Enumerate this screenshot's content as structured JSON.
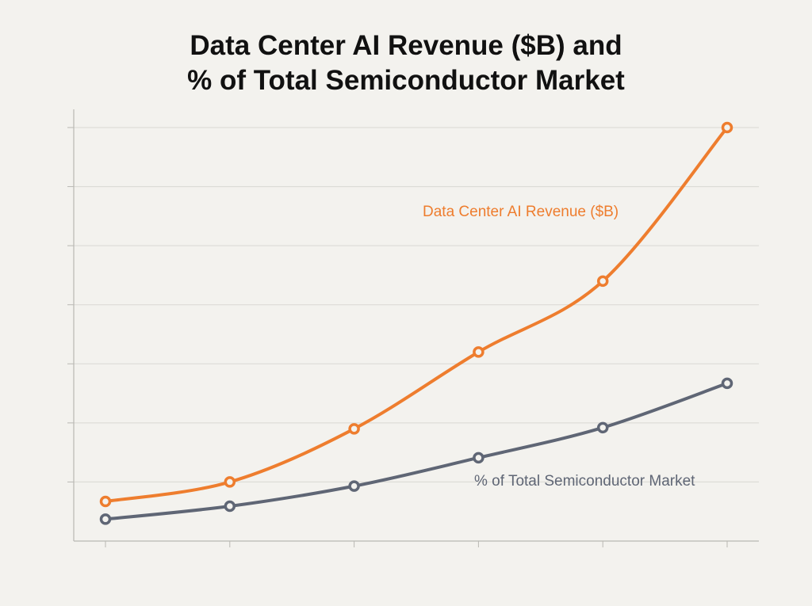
{
  "chart_data": {
    "type": "line",
    "title_lines": [
      "Data Center  AI Revenue ($B)  and",
      "% of Total Semiconductor Market"
    ],
    "xlabel": "",
    "ylabel": "",
    "x": [
      1,
      2,
      3,
      4,
      5,
      6
    ],
    "ylim": [
      0,
      7
    ],
    "yticks": [
      1,
      2,
      3,
      4,
      5,
      6,
      7
    ],
    "grid": true,
    "tick_labels_shown": false,
    "legend": "inline labels",
    "series": [
      {
        "name": "Data Center AI Revenue ($B)",
        "color": "#ee7d2e",
        "values": [
          0.67,
          1.0,
          1.9,
          3.2,
          4.4,
          7.0
        ]
      },
      {
        "name": "% of Total Semiconductor Market",
        "color": "#5f6675",
        "values": [
          0.37,
          0.59,
          0.93,
          1.41,
          1.92,
          2.67
        ]
      }
    ]
  }
}
